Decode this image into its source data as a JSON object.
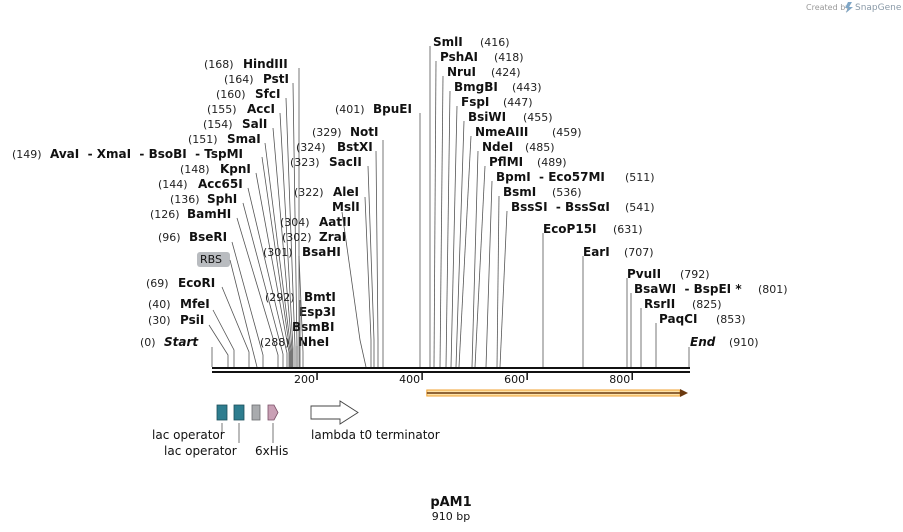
{
  "credit": {
    "created_by": "Created by",
    "brand": "SnapGene"
  },
  "plasmid": {
    "name": "pAM1",
    "length_label": "910 bp",
    "length_bp": 910
  },
  "axis": {
    "ticks": [
      {
        "label": "200",
        "bp": 200
      },
      {
        "label": "400",
        "bp": 400
      },
      {
        "label": "600",
        "bp": 600
      },
      {
        "label": "800",
        "bp": 800
      }
    ]
  },
  "rbs_label": "RBS",
  "sites": [
    {
      "pos": "(0)",
      "name": "Start",
      "bp": 0,
      "italic": true
    },
    {
      "pos": "(30)",
      "name": "PsiI",
      "bp": 30
    },
    {
      "pos": "(40)",
      "name": "MfeI",
      "bp": 40
    },
    {
      "pos": "(69)",
      "name": "EcoRI",
      "bp": 69
    },
    {
      "pos": "(96)",
      "name": "BseRI",
      "bp": 96
    },
    {
      "pos": "(126)",
      "name": "BamHI",
      "bp": 126
    },
    {
      "pos": "(136)",
      "name": "SphI",
      "bp": 136
    },
    {
      "pos": "(144)",
      "name": "Acc65I",
      "bp": 144
    },
    {
      "pos": "(148)",
      "name": "KpnI",
      "bp": 148
    },
    {
      "pos": "(149)",
      "name": "AvaI  - XmaI  - BsoBI  - TspMI",
      "bp": 149
    },
    {
      "pos": "(151)",
      "name": "SmaI",
      "bp": 151
    },
    {
      "pos": "(154)",
      "name": "SalI",
      "bp": 154
    },
    {
      "pos": "(155)",
      "name": "AccI",
      "bp": 155
    },
    {
      "pos": "(160)",
      "name": "SfcI",
      "bp": 160
    },
    {
      "pos": "(164)",
      "name": "PstI",
      "bp": 164
    },
    {
      "pos": "(168)",
      "name": "HindIII",
      "bp": 168
    },
    {
      "pos": "(288)",
      "name": "NheI",
      "bp": 288
    },
    {
      "pos": "",
      "name": "BsmBI",
      "bp": 292
    },
    {
      "pos": "",
      "name": "Esp3I",
      "bp": 292
    },
    {
      "pos": "(292)",
      "name": "BmtI",
      "bp": 292
    },
    {
      "pos": "(301)",
      "name": "BsaHI",
      "bp": 301
    },
    {
      "pos": "(302)",
      "name": "ZraI",
      "bp": 302
    },
    {
      "pos": "(304)",
      "name": "AatII",
      "bp": 304
    },
    {
      "pos": "",
      "name": "MslI",
      "bp": 322
    },
    {
      "pos": "(322)",
      "name": "AleI",
      "bp": 322
    },
    {
      "pos": "(323)",
      "name": "SacII",
      "bp": 323
    },
    {
      "pos": "(324)",
      "name": "BstXI",
      "bp": 324
    },
    {
      "pos": "(329)",
      "name": "NotI",
      "bp": 329
    },
    {
      "pos": "(401)",
      "name": "BpuEI",
      "bp": 401
    },
    {
      "pos": "(416)",
      "name": "SmlI",
      "bp": 416
    },
    {
      "pos": "(418)",
      "name": "PshAI",
      "bp": 418
    },
    {
      "pos": "(424)",
      "name": "NruI",
      "bp": 424
    },
    {
      "pos": "(443)",
      "name": "BmgBI",
      "bp": 443
    },
    {
      "pos": "(447)",
      "name": "FspI",
      "bp": 447
    },
    {
      "pos": "(455)",
      "name": "BsiWI",
      "bp": 455
    },
    {
      "pos": "(459)",
      "name": "NmeAIII",
      "bp": 459
    },
    {
      "pos": "(485)",
      "name": "NdeI",
      "bp": 485
    },
    {
      "pos": "(489)",
      "name": "PflMI",
      "bp": 489
    },
    {
      "pos": "(511)",
      "name": "BpmI  - Eco57MI",
      "bp": 511
    },
    {
      "pos": "(536)",
      "name": "BsmI",
      "bp": 536
    },
    {
      "pos": "(541)",
      "name": "BssSI  - BssSαI",
      "bp": 541
    },
    {
      "pos": "(631)",
      "name": "EcoP15I",
      "bp": 631
    },
    {
      "pos": "(707)",
      "name": "EarI",
      "bp": 707
    },
    {
      "pos": "(792)",
      "name": "PvuII",
      "bp": 792
    },
    {
      "pos": "(801)",
      "name": "BsaWI  - BspEI *",
      "bp": 801
    },
    {
      "pos": "(825)",
      "name": "RsrII",
      "bp": 825
    },
    {
      "pos": "(853)",
      "name": "PaqCI",
      "bp": 853
    },
    {
      "pos": "(910)",
      "name": "End",
      "bp": 910,
      "italic": true
    }
  ],
  "features": [
    {
      "label": "lac operator",
      "kind": "operator",
      "color": "#2e7d8f"
    },
    {
      "label": "lac operator",
      "kind": "operator",
      "color": "#2e7d8f"
    },
    {
      "label": "",
      "kind": "rbs",
      "color": "#a9abae"
    },
    {
      "label": "6xHis",
      "kind": "tag",
      "color": "#c9a0b5"
    },
    {
      "label": "lambda t0 terminator",
      "kind": "terminator",
      "color": "#ffffff"
    }
  ],
  "orf": {
    "start_bp": 409,
    "end_bp": 910,
    "color": "#f0a030"
  }
}
